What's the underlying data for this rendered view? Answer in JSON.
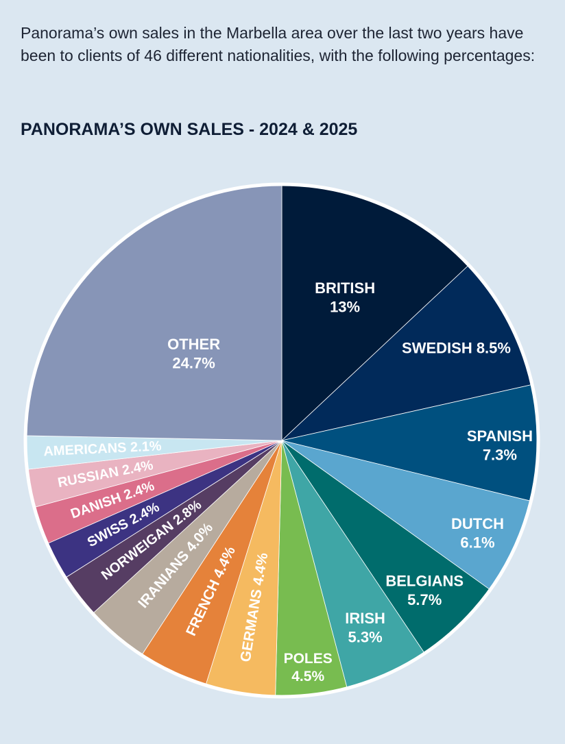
{
  "intro_text": "Panorama’s own sales in the Marbella area over the last two years have been to clients of 46 different nationalities, with the following percentages:",
  "chart_data": {
    "type": "pie",
    "title": "PANORAMA’S OWN SALES - 2024 & 2025",
    "slices": [
      {
        "label": "BRITISH",
        "display": "13%",
        "value": 13.0,
        "color": "#001b3a"
      },
      {
        "label": "SWEDISH",
        "display": "8.5%",
        "value": 8.5,
        "color": "#012a5a"
      },
      {
        "label": "SPANISH",
        "display": "7.3%",
        "value": 7.3,
        "color": "#00507f"
      },
      {
        "label": "DUTCH",
        "display": "6.1%",
        "value": 6.1,
        "color": "#5aa6cf"
      },
      {
        "label": "BELGIANS",
        "display": "5.7%",
        "value": 5.7,
        "color": "#006c6c"
      },
      {
        "label": "IRISH",
        "display": "5.3%",
        "value": 5.3,
        "color": "#3fa6a6"
      },
      {
        "label": "POLES",
        "display": "4.5%",
        "value": 4.5,
        "color": "#78bc50"
      },
      {
        "label": "GERMANS",
        "display": "4.4%",
        "value": 4.4,
        "color": "#f5ba60"
      },
      {
        "label": "FRENCH",
        "display": "4.4%",
        "value": 4.4,
        "color": "#e5823a"
      },
      {
        "label": "IRANIANS",
        "display": "4.0%",
        "value": 4.0,
        "color": "#b7ab9e"
      },
      {
        "label": "NORWEIGAN",
        "display": "2.8%",
        "value": 2.8,
        "color": "#563d63"
      },
      {
        "label": "SWISS",
        "display": "2.4%",
        "value": 2.4,
        "color": "#3c3382"
      },
      {
        "label": "DANISH",
        "display": "2.4%",
        "value": 2.4,
        "color": "#db6e8a"
      },
      {
        "label": "RUSSIAN",
        "display": "2.4%",
        "value": 2.4,
        "color": "#e9b3c1"
      },
      {
        "label": "AMERICANS",
        "display": "2.1%",
        "value": 2.1,
        "color": "#c8e6f1"
      },
      {
        "label": "OTHER",
        "display": "24.7%",
        "value": 24.7,
        "color": "#8795b7"
      }
    ]
  }
}
